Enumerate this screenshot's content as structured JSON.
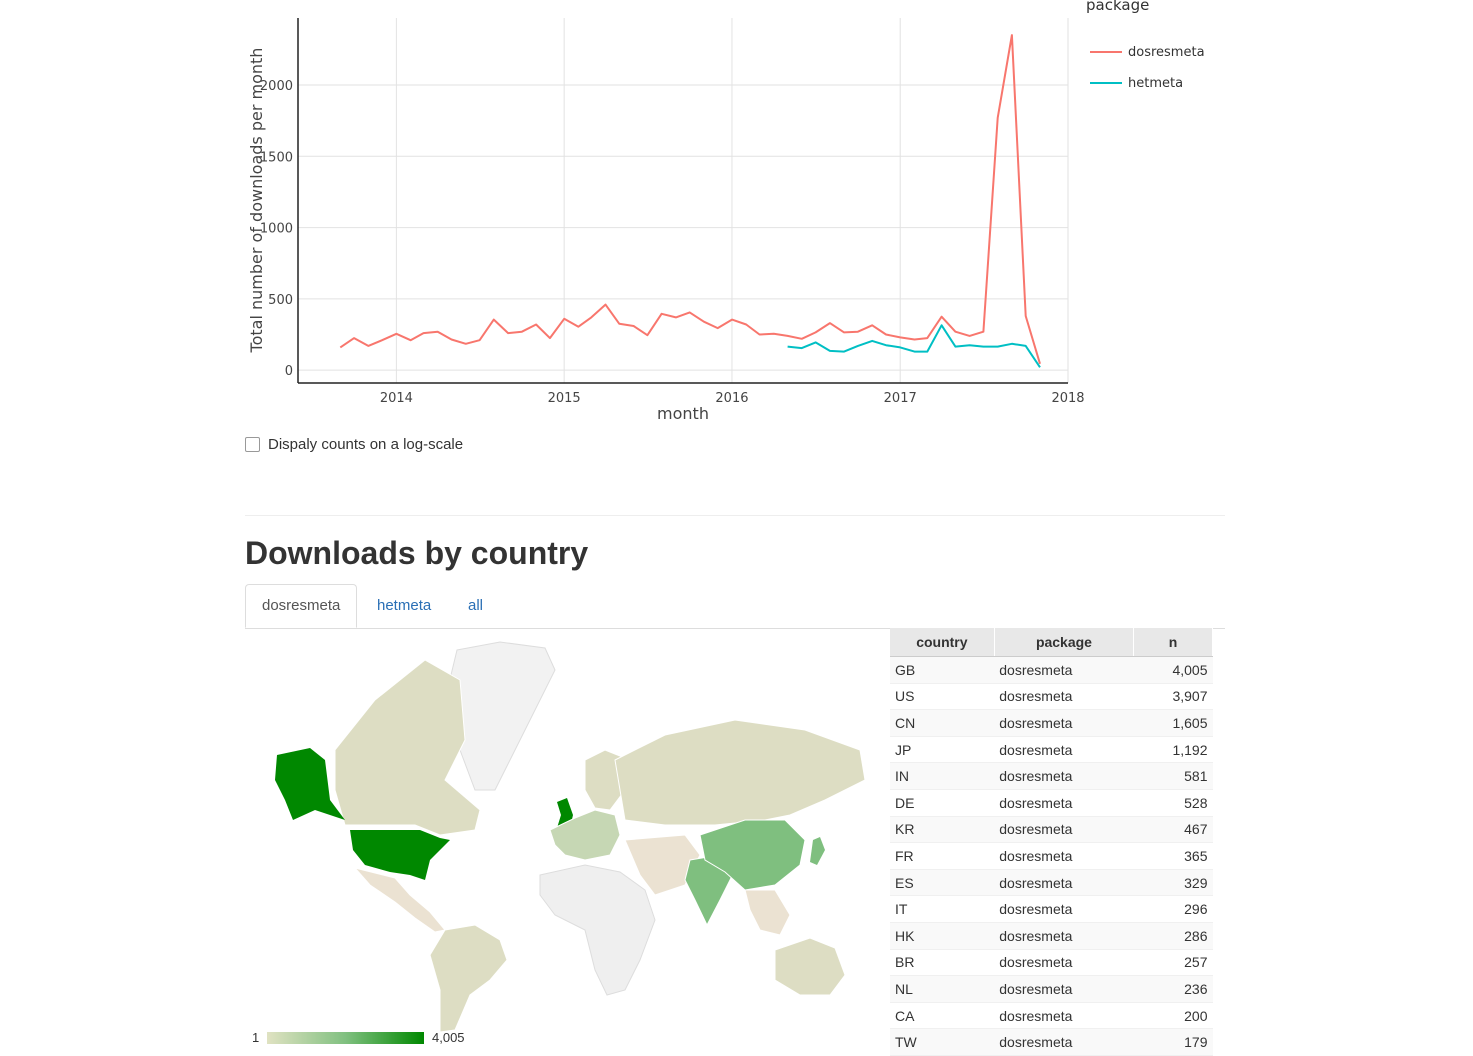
{
  "chart_data": {
    "type": "line",
    "xlabel": "month",
    "ylabel": "Total number of downloads per month",
    "xlim": [
      "2013-06-01",
      "2018-01-01"
    ],
    "ylim": [
      -90,
      2470
    ],
    "x_ticks": [
      "2014",
      "2015",
      "2016",
      "2017",
      "2018"
    ],
    "y_ticks": [
      "0",
      "500",
      "1000",
      "1500",
      "2000"
    ],
    "grid": true,
    "legend_title": "package",
    "legend_position": "right",
    "series": [
      {
        "name": "dosresmeta",
        "color": "#f8766d",
        "x": [
          "2013-09",
          "2013-10",
          "2013-11",
          "2013-12",
          "2014-01",
          "2014-02",
          "2014-03",
          "2014-04",
          "2014-05",
          "2014-06",
          "2014-07",
          "2014-08",
          "2014-09",
          "2014-10",
          "2014-11",
          "2014-12",
          "2015-01",
          "2015-02",
          "2015-03",
          "2015-04",
          "2015-05",
          "2015-06",
          "2015-07",
          "2015-08",
          "2015-09",
          "2015-10",
          "2015-11",
          "2015-12",
          "2016-01",
          "2016-02",
          "2016-03",
          "2016-04",
          "2016-05",
          "2016-06",
          "2016-07",
          "2016-08",
          "2016-09",
          "2016-10",
          "2016-11",
          "2016-12",
          "2017-01",
          "2017-02",
          "2017-03",
          "2017-04",
          "2017-05",
          "2017-06",
          "2017-07",
          "2017-08",
          "2017-09",
          "2017-10",
          "2017-11"
        ],
        "y": [
          160,
          225,
          170,
          210,
          255,
          210,
          260,
          270,
          215,
          185,
          210,
          355,
          260,
          270,
          320,
          225,
          360,
          305,
          370,
          460,
          325,
          310,
          245,
          395,
          370,
          405,
          340,
          295,
          355,
          320,
          250,
          255,
          240,
          220,
          265,
          330,
          265,
          270,
          315,
          250,
          230,
          215,
          225,
          375,
          270,
          240,
          270,
          1770,
          2350,
          380,
          45
        ]
      },
      {
        "name": "hetmeta",
        "color": "#00bfc4",
        "x": [
          "2016-05",
          "2016-06",
          "2016-07",
          "2016-08",
          "2016-09",
          "2016-10",
          "2016-11",
          "2016-12",
          "2017-01",
          "2017-02",
          "2017-03",
          "2017-04",
          "2017-05",
          "2017-06",
          "2017-07",
          "2017-08",
          "2017-09",
          "2017-10",
          "2017-11"
        ],
        "y": [
          165,
          155,
          195,
          135,
          130,
          170,
          205,
          175,
          160,
          130,
          130,
          315,
          165,
          175,
          165,
          165,
          185,
          170,
          20
        ]
      }
    ]
  },
  "log_toggle": {
    "label": "Dispaly counts on a log-scale",
    "checked": false
  },
  "section": {
    "title": "Downloads by country"
  },
  "tabs": [
    {
      "label": "dosresmeta",
      "active": true
    },
    {
      "label": "hetmeta",
      "active": false
    },
    {
      "label": "all",
      "active": false
    }
  ],
  "map": {
    "legend_min": "1",
    "legend_max": "4,005",
    "colors": {
      "low": "#e0e2c2",
      "high": "#008800",
      "none": "#f2f2f2"
    }
  },
  "table": {
    "columns": [
      "country",
      "package",
      "n"
    ],
    "rows": [
      [
        "GB",
        "dosresmeta",
        "4,005"
      ],
      [
        "US",
        "dosresmeta",
        "3,907"
      ],
      [
        "CN",
        "dosresmeta",
        "1,605"
      ],
      [
        "JP",
        "dosresmeta",
        "1,192"
      ],
      [
        "IN",
        "dosresmeta",
        "581"
      ],
      [
        "DE",
        "dosresmeta",
        "528"
      ],
      [
        "KR",
        "dosresmeta",
        "467"
      ],
      [
        "FR",
        "dosresmeta",
        "365"
      ],
      [
        "ES",
        "dosresmeta",
        "329"
      ],
      [
        "IT",
        "dosresmeta",
        "296"
      ],
      [
        "HK",
        "dosresmeta",
        "286"
      ],
      [
        "BR",
        "dosresmeta",
        "257"
      ],
      [
        "NL",
        "dosresmeta",
        "236"
      ],
      [
        "CA",
        "dosresmeta",
        "200"
      ],
      [
        "TW",
        "dosresmeta",
        "179"
      ]
    ]
  }
}
